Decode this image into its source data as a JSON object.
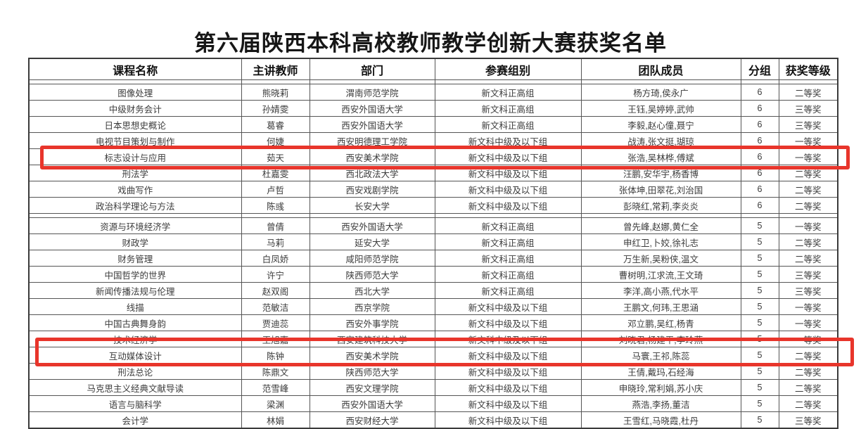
{
  "title": "第六届陕西本科高校教师教学创新大赛获奖名单",
  "accent_color": "#e8352b",
  "highlighted_rows": [
    5,
    17
  ],
  "table": {
    "columns": [
      "课程名称",
      "主讲教师",
      "部门",
      "参赛组别",
      "团队成员",
      "分组",
      "获奖等级"
    ],
    "rows": [
      [
        "图像处理",
        "熊晓莉",
        "渭南师范学院",
        "新文科正高组",
        "杨方琦,侯永广",
        "6",
        "二等奖"
      ],
      [
        "中级财务会计",
        "孙婧雯",
        "西安外国语大学",
        "新文科正高组",
        "王钰,吴婷婷,武帅",
        "6",
        "三等奖"
      ],
      [
        "日本思想史概论",
        "葛睿",
        "西安外国语大学",
        "新文科正高组",
        "李毅,赵心僮,聂宁",
        "6",
        "三等奖"
      ],
      [
        "电视节目策划与制作",
        "何婕",
        "西安明德理工学院",
        "新文科中级及以下组",
        "战涛,张文挺,瑚琼",
        "6",
        "一等奖"
      ],
      [
        "标志设计与应用",
        "茹天",
        "西安美术学院",
        "新文科中级及以下组",
        "张浩,吴林桦,傅斌",
        "6",
        "一等奖"
      ],
      [
        "刑法学",
        "杜嘉雯",
        "西北政法大学",
        "新文科中级及以下组",
        "汪鹏,安华宇,杨香博",
        "6",
        "二等奖"
      ],
      [
        "戏曲写作",
        "卢哲",
        "西安戏剧学院",
        "新文科中级及以下组",
        "张体坤,田翠花,刘治国",
        "6",
        "二等奖"
      ],
      [
        "政治科学理论与方法",
        "陈彧",
        "长安大学",
        "新文科中级及以下组",
        "彭晓红,常莉,李炎炎",
        "6",
        "二等奖"
      ],
      [
        "资源与环境经济学",
        "曾倩",
        "西安外国语大学",
        "新文科正高组",
        "曾先峰,赵娜,黄仁全",
        "5",
        "一等奖"
      ],
      [
        "财政学",
        "马莉",
        "延安大学",
        "新文科正高组",
        "申红卫,卜姣,徐礼志",
        "5",
        "二等奖"
      ],
      [
        "财务管理",
        "白凤娇",
        "咸阳师范学院",
        "新文科正高组",
        "万生新,吴粉侠,温文",
        "5",
        "二等奖"
      ],
      [
        "中国哲学的世界",
        "许宁",
        "陕西师范大学",
        "新文科正高组",
        "曹树明,江求流,王文琦",
        "5",
        "三等奖"
      ],
      [
        "新闻传播法规与伦理",
        "赵双阁",
        "西北大学",
        "新文科正高组",
        "李洋,高小燕,代水平",
        "5",
        "三等奖"
      ],
      [
        "线描",
        "范敏洁",
        "西京学院",
        "新文科中级及以下组",
        "王鹏文,何玮,王思涵",
        "5",
        "一等奖"
      ],
      [
        "中国古典舞身韵",
        "贾迪蕊",
        "西安外事学院",
        "新文科中级及以下组",
        "邓立鹏,吴红,杨青",
        "5",
        "一等奖"
      ],
      [
        "技术经济学",
        "王旭嘉",
        "西安建筑科技大学",
        "新文科中级及以下组",
        "刘晓君,杨建平,李玲燕",
        "5",
        "一等奖"
      ],
      [
        "互动媒体设计",
        "陈钟",
        "西安美术学院",
        "新文科中级及以下组",
        "马寰,王祁,陈蕊",
        "5",
        "二等奖"
      ],
      [
        "刑法总论",
        "陈鼎文",
        "陕西师范大学",
        "新文科中级及以下组",
        "王倩,戴玛,石经海",
        "5",
        "二等奖"
      ],
      [
        "马克思主义经典文献导读",
        "范雪峰",
        "西安文理学院",
        "新文科中级及以下组",
        "申晓玲,常利娟,苏小庆",
        "5",
        "二等奖"
      ],
      [
        "语言与脑科学",
        "梁渊",
        "西安外国语大学",
        "新文科中级及以下组",
        "燕浩,李扬,董洁",
        "5",
        "二等奖"
      ],
      [
        "会计学",
        "林娟",
        "西安财经大学",
        "新文科中级及以下组",
        "王雪红,马晓霞,杜丹",
        "5",
        "三等奖"
      ]
    ]
  }
}
